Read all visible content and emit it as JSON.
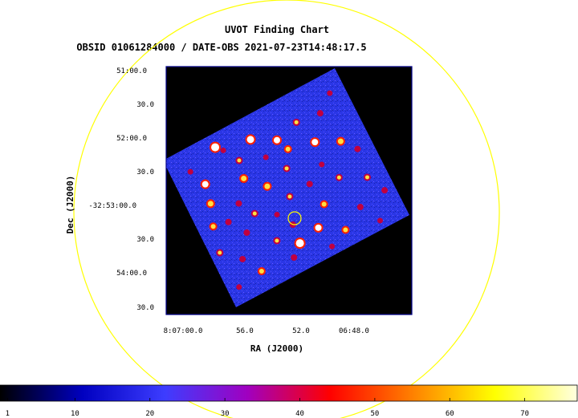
{
  "chart_data": {
    "type": "image",
    "title": "UVOT Finding Chart",
    "subtitle": "OBSID 01061284000 / DATE-OBS 2021-07-23T14:48:17.5",
    "xlabel": "RA (J2000)",
    "ylabel": "Dec (J2000)",
    "x_ticks": [
      "8:07:00.0",
      "56.0",
      "52.0",
      "06:48.0"
    ],
    "y_ticks": [
      "51:00.0",
      "30.0",
      "52:00.0",
      "30.0",
      "-32:53:00.0",
      "30.0",
      "54:00.0",
      "30.0"
    ],
    "colorbar_ticks": [
      "1",
      "10",
      "20",
      "30",
      "40",
      "50",
      "60",
      "70"
    ],
    "colorbar_range": [
      0,
      77
    ],
    "colormap": [
      "#000000",
      "#0000c0",
      "#3d3dff",
      "#a000c0",
      "#ff0000",
      "#ff8000",
      "#ffff00",
      "#ffffe0"
    ],
    "colors": {
      "background": "#000000",
      "field": "#2a36e6",
      "circle": "#ffff00",
      "frame": "#00008b"
    },
    "sources": [
      {
        "u": 0.27,
        "v": 0.08,
        "b": 70
      },
      {
        "u": 0.45,
        "v": 0.14,
        "b": 65
      },
      {
        "u": 0.57,
        "v": 0.22,
        "b": 60
      },
      {
        "u": 0.33,
        "v": 0.33,
        "b": 55
      },
      {
        "u": 0.14,
        "v": 0.25,
        "b": 60
      },
      {
        "u": 0.12,
        "v": 0.37,
        "b": 55
      },
      {
        "u": 0.08,
        "v": 0.5,
        "b": 50
      },
      {
        "u": 0.22,
        "v": 0.63,
        "b": 40
      },
      {
        "u": 0.3,
        "v": 0.55,
        "b": 45
      },
      {
        "u": 0.42,
        "v": 0.44,
        "b": 55
      },
      {
        "u": 0.55,
        "v": 0.4,
        "b": 45
      },
      {
        "u": 0.62,
        "v": 0.55,
        "b": 40
      },
      {
        "u": 0.74,
        "v": 0.34,
        "b": 60
      },
      {
        "u": 0.86,
        "v": 0.41,
        "b": 55
      },
      {
        "u": 0.92,
        "v": 0.5,
        "b": 40
      },
      {
        "u": 0.77,
        "v": 0.6,
        "b": 45
      },
      {
        "u": 0.64,
        "v": 0.7,
        "b": 50
      },
      {
        "u": 0.56,
        "v": 0.81,
        "b": 60
      },
      {
        "u": 0.44,
        "v": 0.84,
        "b": 70
      },
      {
        "u": 0.45,
        "v": 0.72,
        "b": 40
      },
      {
        "u": 0.34,
        "v": 0.76,
        "b": 45
      },
      {
        "u": 0.38,
        "v": 0.9,
        "b": 40
      },
      {
        "u": 0.2,
        "v": 0.88,
        "b": 50
      },
      {
        "u": 0.14,
        "v": 0.76,
        "b": 40
      },
      {
        "u": 0.05,
        "v": 0.66,
        "b": 45
      },
      {
        "u": 0.68,
        "v": 0.9,
        "b": 50
      },
      {
        "u": 0.8,
        "v": 0.82,
        "b": 40
      },
      {
        "u": 0.9,
        "v": 0.68,
        "b": 45
      },
      {
        "u": 0.95,
        "v": 0.8,
        "b": 40
      },
      {
        "u": 0.6,
        "v": 0.3,
        "b": 50
      },
      {
        "u": 0.7,
        "v": 0.18,
        "b": 45
      },
      {
        "u": 0.83,
        "v": 0.2,
        "b": 40
      },
      {
        "u": 0.5,
        "v": 0.56,
        "b": 45
      },
      {
        "u": 0.25,
        "v": 0.45,
        "b": 40
      },
      {
        "u": 0.35,
        "v": 0.22,
        "b": 45
      },
      {
        "u": 0.16,
        "v": 0.52,
        "b": 40
      },
      {
        "u": 0.58,
        "v": 0.95,
        "b": 35
      },
      {
        "u": 0.72,
        "v": 0.48,
        "b": 35
      },
      {
        "u": 0.4,
        "v": 0.62,
        "b": 35
      },
      {
        "u": 0.48,
        "v": 0.28,
        "b": 35
      },
      {
        "u": 0.3,
        "v": 0.12,
        "b": 35
      },
      {
        "u": 0.1,
        "v": 0.14,
        "b": 35
      },
      {
        "u": 0.86,
        "v": 0.95,
        "b": 35
      },
      {
        "u": 0.92,
        "v": 0.12,
        "b": 35
      },
      {
        "u": 0.06,
        "v": 0.9,
        "b": 35
      }
    ]
  }
}
